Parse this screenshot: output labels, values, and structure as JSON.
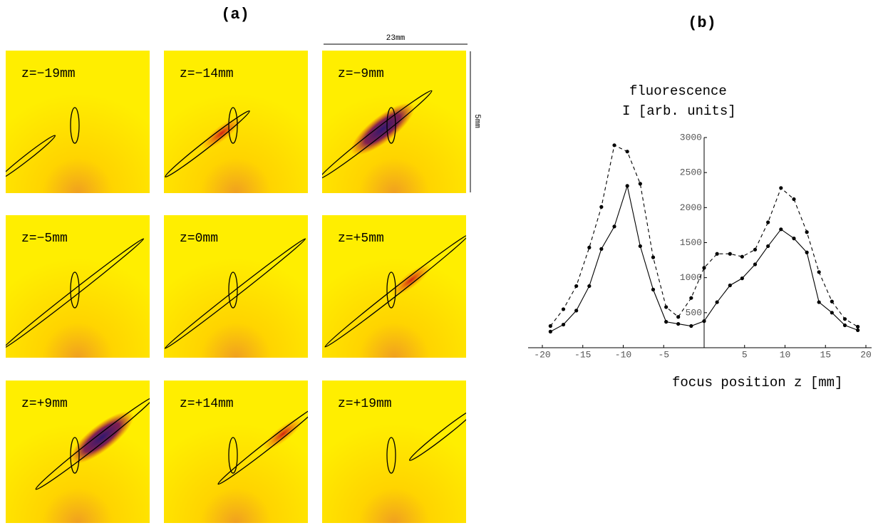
{
  "panel_a": {
    "title": "(a)",
    "width_label": "23mm",
    "height_label": "5mm",
    "labels": [
      "z=−19mm",
      "z=−14mm",
      "z=−9mm",
      "z=−5mm",
      "z=0mm",
      "z=+5mm",
      "z=+9mm",
      "z=+14mm",
      "z=+19mm"
    ]
  },
  "chart_data": {
    "type": "line",
    "title": "(b)",
    "ylabel": [
      "fluorescence",
      "I [arb. units]"
    ],
    "xlabel": "focus position z [mm]",
    "x": [
      -19,
      -17.4,
      -15.8,
      -14.2,
      -12.7,
      -11.1,
      -9.5,
      -7.9,
      -6.3,
      -4.7,
      -3.2,
      -1.6,
      0,
      1.6,
      3.2,
      4.7,
      6.3,
      7.9,
      9.5,
      11.1,
      12.7,
      14.2,
      15.8,
      17.4,
      19
    ],
    "xlim": [
      -20,
      20
    ],
    "ylim": [
      0,
      3000
    ],
    "xticks": [
      -20,
      -15,
      -10,
      -5,
      5,
      10,
      15,
      20
    ],
    "yticks": [
      500,
      1000,
      1500,
      2000,
      2500,
      3000
    ],
    "series": [
      {
        "color": "#000000",
        "dashed": false,
        "values": [
          230,
          330,
          530,
          880,
          1410,
          1730,
          2310,
          1450,
          830,
          370,
          340,
          310,
          380,
          650,
          890,
          990,
          1190,
          1450,
          1690,
          1560,
          1360,
          650,
          500,
          320,
          250
        ]
      },
      {
        "color": "#000000",
        "dashed": true,
        "values": [
          310,
          550,
          880,
          1430,
          2010,
          2890,
          2800,
          2340,
          1290,
          580,
          440,
          710,
          1140,
          1340,
          1340,
          1300,
          1400,
          1790,
          2280,
          2120,
          1650,
          1080,
          660,
          410,
          300
        ]
      }
    ]
  }
}
